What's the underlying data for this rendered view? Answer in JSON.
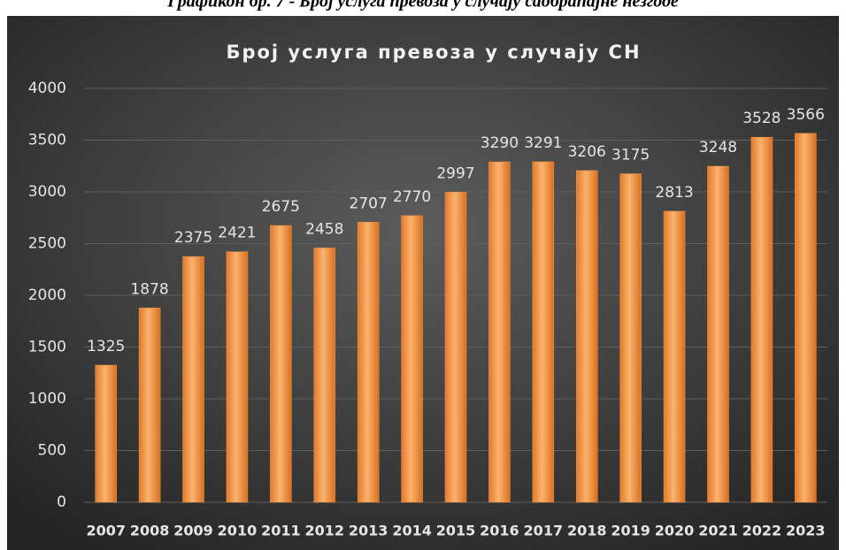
{
  "caption": "Графикон бр. 7 - Број услуга превоза у случају саобраћајне незгоде",
  "chart_data": {
    "type": "bar",
    "title": "Број услуга превоза у случају СН",
    "categories": [
      "2007",
      "2008",
      "2009",
      "2010",
      "2011",
      "2012",
      "2013",
      "2014",
      "2015",
      "2016",
      "2017",
      "2018",
      "2019",
      "2020",
      "2021",
      "2022",
      "2023"
    ],
    "values": [
      1325,
      1878,
      2375,
      2421,
      2675,
      2458,
      2707,
      2770,
      2997,
      3290,
      3291,
      3206,
      3175,
      2813,
      3248,
      3528,
      3566
    ],
    "color": "#f79646",
    "ylim": [
      0,
      4000
    ],
    "yticks": [
      0,
      500,
      1000,
      1500,
      2000,
      2500,
      3000,
      3500,
      4000
    ],
    "grid": true
  }
}
